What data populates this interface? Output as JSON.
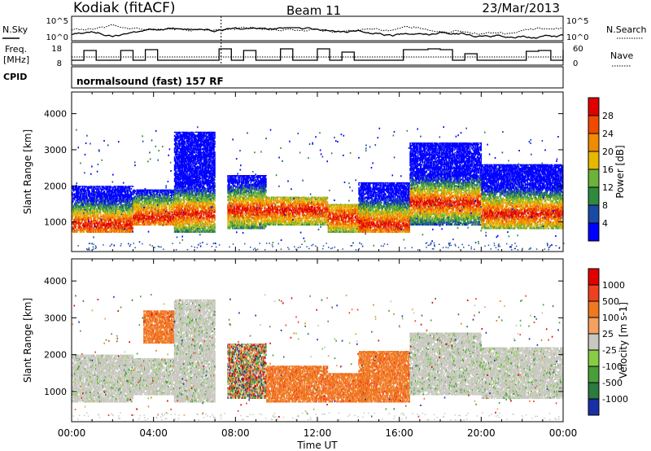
{
  "header": {
    "station": "Kodiak (fitACF)",
    "beam": "Beam 11",
    "date": "23/Mar/2013"
  },
  "summary_panels": {
    "nsky_label": "N.Sky",
    "nsearch_label": "N.Search",
    "noise_ticks": [
      "10^5",
      "10^0"
    ],
    "freq_label_1": "Freq.",
    "freq_label_2": "[MHz]",
    "freq_ticks": [
      "18",
      "8"
    ],
    "nave_ticks": [
      "60",
      "0"
    ],
    "nave_label": "Nave",
    "cpid_label": "CPID",
    "cpid_text": "normalsound (fast) 157 RF"
  },
  "x_axis": {
    "title": "Time UT",
    "ticks": [
      "00:00",
      "04:00",
      "08:00",
      "12:00",
      "16:00",
      "20:00",
      "00:00"
    ],
    "range_hours": [
      0,
      24
    ]
  },
  "chart_data": [
    {
      "type": "heatmap",
      "title": "",
      "xlabel": "Time UT",
      "ylabel": "Slant Range [km]",
      "xlim": [
        0,
        24
      ],
      "ylim": [
        180,
        4600
      ],
      "yticks": [
        "1000",
        "2000",
        "3000",
        "4000"
      ],
      "colorbar": {
        "label": "Power [dB]",
        "ticks": [
          "4",
          "8",
          "12",
          "16",
          "20",
          "24",
          "28"
        ],
        "colors": [
          "#0000ff",
          "#1a4aa6",
          "#2f8a3e",
          "#6bb33a",
          "#e6b800",
          "#f08a00",
          "#f04a00",
          "#e00000"
        ]
      },
      "echo_regions": [
        {
          "t": [
            0.0,
            3.0
          ],
          "r": [
            700,
            2000
          ],
          "core": 900
        },
        {
          "t": [
            3.0,
            5.0
          ],
          "r": [
            900,
            1900
          ],
          "core": 1100
        },
        {
          "t": [
            5.0,
            7.0
          ],
          "r": [
            700,
            3500
          ],
          "core": 1200
        },
        {
          "t": [
            7.6,
            9.5
          ],
          "r": [
            800,
            2300
          ],
          "core": 1300
        },
        {
          "t": [
            9.5,
            12.5
          ],
          "r": [
            900,
            1700
          ],
          "core": 1300
        },
        {
          "t": [
            12.5,
            14.5
          ],
          "r": [
            700,
            1500
          ],
          "core": 1100
        },
        {
          "t": [
            14.0,
            16.5
          ],
          "r": [
            700,
            2100
          ],
          "core": 900
        },
        {
          "t": [
            16.5,
            20.0
          ],
          "r": [
            900,
            3200
          ],
          "core": 1500
        },
        {
          "t": [
            20.0,
            24.0
          ],
          "r": [
            800,
            2600
          ],
          "core": 1200
        }
      ]
    },
    {
      "type": "heatmap",
      "title": "",
      "xlabel": "Time UT",
      "ylabel": "Slant Range [km]",
      "xlim": [
        0,
        24
      ],
      "ylim": [
        180,
        4600
      ],
      "yticks": [
        "1000",
        "2000",
        "3000",
        "4000"
      ],
      "colorbar": {
        "label": "Velocity [m s-1]",
        "ticks": [
          "1000",
          "500",
          "100",
          "25",
          "-25",
          "-100",
          "-500",
          "-1000"
        ],
        "colors": [
          "#1a2fa6",
          "#2c7a3e",
          "#4a9e3a",
          "#88cc44",
          "#c8c8c0",
          "#f4a060",
          "#f07820",
          "#f04020",
          "#e00000"
        ]
      },
      "echo_regions": [
        {
          "t": [
            0.0,
            3.0
          ],
          "r": [
            700,
            2000
          ],
          "v": "gray"
        },
        {
          "t": [
            3.0,
            5.0
          ],
          "r": [
            900,
            1900
          ],
          "v": "gray"
        },
        {
          "t": [
            3.5,
            5.0
          ],
          "r": [
            2300,
            3200
          ],
          "v": "orange"
        },
        {
          "t": [
            5.0,
            7.0
          ],
          "r": [
            700,
            3500
          ],
          "v": "gray"
        },
        {
          "t": [
            7.6,
            9.5
          ],
          "r": [
            800,
            2300
          ],
          "v": "mixed"
        },
        {
          "t": [
            9.5,
            12.5
          ],
          "r": [
            700,
            1700
          ],
          "v": "orange"
        },
        {
          "t": [
            12.5,
            14.5
          ],
          "r": [
            700,
            1500
          ],
          "v": "orange"
        },
        {
          "t": [
            14.0,
            16.5
          ],
          "r": [
            700,
            2100
          ],
          "v": "orange"
        },
        {
          "t": [
            16.5,
            20.0
          ],
          "r": [
            900,
            2600
          ],
          "v": "gray"
        },
        {
          "t": [
            20.0,
            24.0
          ],
          "r": [
            800,
            2200
          ],
          "v": "gray"
        }
      ]
    }
  ]
}
